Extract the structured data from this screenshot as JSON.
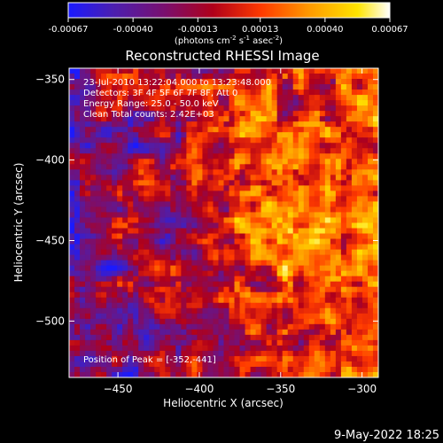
{
  "colorbar": {
    "tick_labels": [
      "-0.00067",
      "-0.00040",
      "-0.00013",
      "0.00013",
      "0.00040",
      "0.00067"
    ],
    "tick_values": [
      -0.00067,
      -0.0004,
      -0.00013,
      0.00013,
      0.0004,
      0.00067
    ],
    "range": [
      -0.00067,
      0.00067
    ],
    "units": "(photons cm",
    "units_sup1": "-2",
    "units_mid": " s",
    "units_sup2": "-1",
    "units_end": " asec",
    "units_sup3": "-2",
    "units_close": ")",
    "colors": [
      "#1a1aff",
      "#4b1fb0",
      "#7a0f6e",
      "#b0001a",
      "#ff3a00",
      "#ff9a00",
      "#ffe400",
      "#ffffff"
    ]
  },
  "chart_data": {
    "type": "heatmap",
    "title": "Reconstructed RHESSI Image",
    "xlabel": "Heliocentric X (arcsec)",
    "ylabel": "Heliocentric Y (arcsec)",
    "xlim": [
      -480,
      -290
    ],
    "ylim": [
      -535,
      -343
    ],
    "xticks": [
      -450,
      -400,
      -350,
      -300
    ],
    "xtick_labels": [
      "−450",
      "−400",
      "−350",
      "−300"
    ],
    "yticks": [
      -350,
      -400,
      -450,
      -500
    ],
    "ytick_labels": [
      "−350",
      "−400",
      "−450",
      "−500"
    ],
    "annotations": [
      "23-Jul-2010 13:22:04.000 to 13:23:48.000",
      "Detectors: 3F 4F 5F 6F 7F 8F, Att 0",
      "Energy Range: 25.0 - 50.0 keV",
      "Clean     Total counts: 2.42E+03"
    ],
    "peak_label": "Position of Peak = [-352,-441]",
    "peak": [
      -352,
      -441
    ],
    "image_value_range": [
      -0.00067,
      0.00067
    ]
  },
  "footer": {
    "date": "9-May-2022 18:25"
  }
}
